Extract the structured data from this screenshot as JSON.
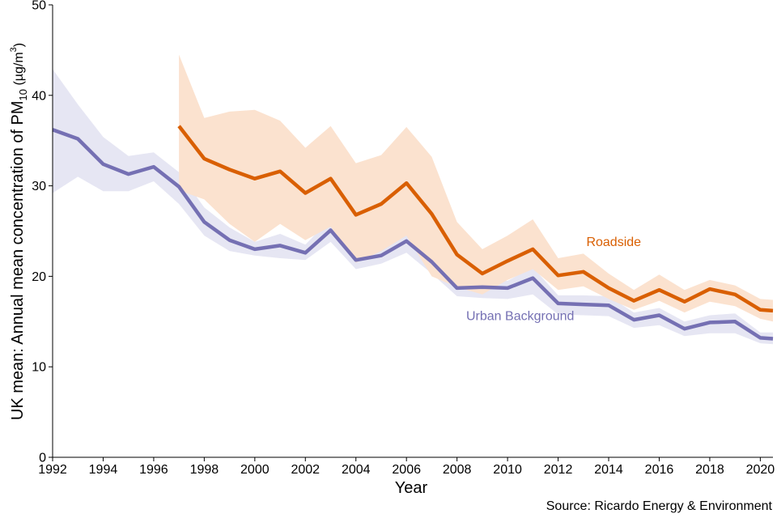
{
  "chart_data": {
    "type": "line",
    "xlabel": "Year",
    "ylabel": "UK mean: Annual mean concentration of PM",
    "ylabel_sub": "10",
    "ylabel_unit_pre": " (µg/m",
    "ylabel_unit_sup": "3",
    "ylabel_unit_post": ")",
    "xlim": [
      1992,
      2020.5
    ],
    "ylim": [
      0,
      50
    ],
    "xticks": [
      1992,
      1994,
      1996,
      1998,
      2000,
      2002,
      2004,
      2006,
      2008,
      2010,
      2012,
      2014,
      2016,
      2018,
      2020
    ],
    "yticks": [
      0,
      10,
      20,
      30,
      40,
      50
    ],
    "grid": false,
    "source": "Source: Ricardo Energy & Environment",
    "series": [
      {
        "name": "Urban Background",
        "color": "#7570b3",
        "band_color": "#e6e6f3",
        "x": [
          1992,
          1993,
          1994,
          1995,
          1996,
          1997,
          1998,
          1999,
          2000,
          2001,
          2002,
          2003,
          2004,
          2005,
          2006,
          2007,
          2008,
          2009,
          2010,
          2011,
          2012,
          2013,
          2014,
          2015,
          2016,
          2017,
          2018,
          2019,
          2020,
          2020.5
        ],
        "y": [
          36.2,
          35.2,
          32.4,
          31.3,
          32.1,
          29.9,
          26.0,
          24.0,
          23.0,
          23.4,
          22.6,
          25.1,
          21.8,
          22.3,
          23.9,
          21.6,
          18.7,
          18.8,
          18.7,
          19.8,
          17.0,
          16.9,
          16.8,
          15.2,
          15.7,
          14.2,
          14.9,
          15.0,
          13.2,
          13.1
        ],
        "lower": [
          29.2,
          31.0,
          29.4,
          29.4,
          30.5,
          28.0,
          24.5,
          22.8,
          22.3,
          22.0,
          21.8,
          23.8,
          20.8,
          21.4,
          22.6,
          20.3,
          17.8,
          17.6,
          17.5,
          18.0,
          15.8,
          15.7,
          15.6,
          14.3,
          14.6,
          13.4,
          13.7,
          13.7,
          12.6,
          12.5
        ],
        "upper": [
          42.9,
          39.0,
          35.4,
          33.3,
          33.7,
          31.5,
          27.6,
          25.4,
          23.8,
          24.7,
          23.5,
          26.4,
          22.5,
          23.2,
          25.0,
          22.7,
          19.4,
          19.6,
          19.5,
          21.0,
          17.9,
          17.9,
          17.8,
          16.0,
          16.5,
          15.0,
          15.7,
          15.9,
          13.8,
          13.8
        ]
      },
      {
        "name": "Roadside",
        "color": "#d95f02",
        "band_color": "#fbe2cf",
        "x": [
          1997,
          1998,
          1999,
          2000,
          2001,
          2002,
          2003,
          2004,
          2005,
          2006,
          2007,
          2008,
          2009,
          2010,
          2011,
          2012,
          2013,
          2014,
          2015,
          2016,
          2017,
          2018,
          2019,
          2020,
          2020.5
        ],
        "y": [
          36.6,
          33.0,
          31.8,
          30.8,
          31.6,
          29.2,
          30.8,
          26.8,
          28.0,
          30.3,
          26.9,
          22.4,
          20.3,
          21.7,
          23.0,
          20.1,
          20.5,
          18.7,
          17.3,
          18.5,
          17.2,
          18.6,
          18.0,
          16.3,
          16.2
        ],
        "lower": [
          29.5,
          28.5,
          25.8,
          23.8,
          25.8,
          24.0,
          25.5,
          21.5,
          22.8,
          24.5,
          20.0,
          18.8,
          18.0,
          19.6,
          20.8,
          18.5,
          18.9,
          17.5,
          16.3,
          17.3,
          16.0,
          17.2,
          16.7,
          15.3,
          15.0
        ],
        "upper": [
          44.5,
          37.5,
          38.2,
          38.4,
          37.2,
          34.2,
          36.6,
          32.5,
          33.4,
          36.5,
          33.2,
          26.0,
          23.0,
          24.5,
          26.3,
          22.0,
          22.5,
          20.3,
          18.5,
          20.2,
          18.5,
          19.6,
          19.0,
          17.5,
          17.4
        ]
      }
    ],
    "labels": [
      {
        "text": "Roadside",
        "series": 1,
        "x": 2014.2,
        "y": 23.8
      },
      {
        "text": "Urban Background",
        "series": 0,
        "x": 2010.5,
        "y": 15.6
      }
    ]
  }
}
